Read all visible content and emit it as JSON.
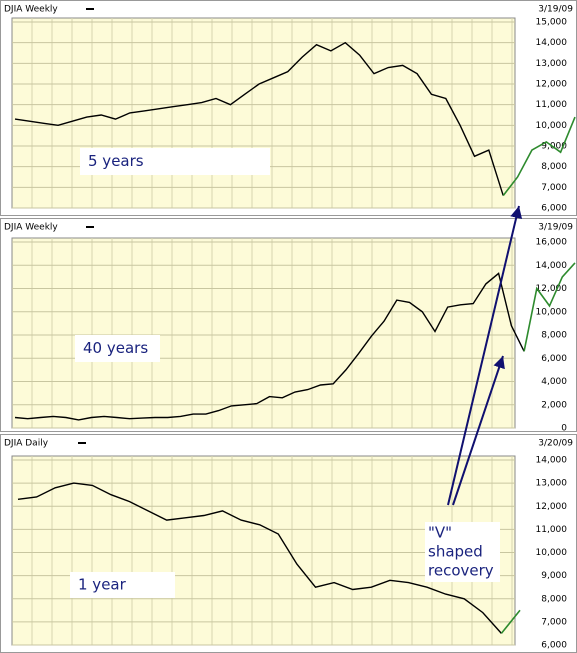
{
  "chart_data": [
    {
      "type": "line",
      "title": "DJIA Weekly",
      "date": "3/19/09",
      "annotation": "5 years",
      "series": [
        {
          "color": "#000000",
          "values": [
            10300,
            10200,
            10100,
            10000,
            10200,
            10400,
            10500,
            10300,
            10600,
            10700,
            10800,
            10900,
            11000,
            11100,
            11300,
            11000,
            11500,
            12000,
            12300,
            12600,
            13300,
            13900,
            13600,
            14000,
            13400,
            12500,
            12800,
            12900,
            12500,
            11500,
            11300,
            10000,
            8500,
            8800,
            6600,
            null,
            null,
            null,
            null,
            null
          ]
        },
        {
          "color": "#2e8b2e",
          "values": [
            null,
            null,
            null,
            null,
            null,
            null,
            null,
            null,
            null,
            null,
            null,
            null,
            null,
            null,
            null,
            null,
            null,
            null,
            null,
            null,
            null,
            null,
            null,
            null,
            null,
            null,
            null,
            null,
            null,
            null,
            null,
            null,
            null,
            null,
            6600,
            7500,
            8800,
            9200,
            8700,
            10400
          ]
        }
      ],
      "ylim": [
        6000,
        15000
      ],
      "yticks": [
        {
          "value": 6000,
          "label": "6,000"
        },
        {
          "value": 7000,
          "label": "7,000"
        },
        {
          "value": 8000,
          "label": "8,000"
        },
        {
          "value": 9000,
          "label": "9,000"
        },
        {
          "value": 10000,
          "label": "10,000"
        },
        {
          "value": 11000,
          "label": "11,000"
        },
        {
          "value": 12000,
          "label": "12,000"
        },
        {
          "value": 13000,
          "label": "13,000"
        },
        {
          "value": 14000,
          "label": "14,000"
        },
        {
          "value": 15000,
          "label": "15,000"
        }
      ],
      "grid": true
    },
    {
      "type": "line",
      "title": "DJIA Weekly",
      "date": "3/19/09",
      "annotation": "40 years",
      "series": [
        {
          "color": "#000000",
          "values": [
            900,
            800,
            900,
            1000,
            900,
            700,
            900,
            1000,
            900,
            800,
            850,
            900,
            900,
            1000,
            1200,
            1200,
            1500,
            1900,
            2000,
            2100,
            2700,
            2600,
            3100,
            3300,
            3700,
            3800,
            5000,
            6400,
            7900,
            9200,
            11000,
            10800,
            10000,
            8300,
            10400,
            10600,
            10700,
            12400,
            13300,
            8800,
            6600,
            null,
            null,
            null,
            null
          ]
        },
        {
          "color": "#2e8b2e",
          "values": [
            null,
            null,
            null,
            null,
            null,
            null,
            null,
            null,
            null,
            null,
            null,
            null,
            null,
            null,
            null,
            null,
            null,
            null,
            null,
            null,
            null,
            null,
            null,
            null,
            null,
            null,
            null,
            null,
            null,
            null,
            null,
            null,
            null,
            null,
            null,
            null,
            null,
            null,
            null,
            null,
            6600,
            12000,
            10500,
            13000,
            14200
          ]
        }
      ],
      "ylim": [
        0,
        16000
      ],
      "yticks": [
        0,
        {
          "value": 2000,
          "label": "2,000"
        },
        {
          "value": 4000,
          "label": "4,000"
        },
        {
          "value": 6000,
          "label": "6,000"
        },
        {
          "value": 8000,
          "label": "8,000"
        },
        {
          "value": 10000,
          "label": "10,000"
        },
        {
          "value": 12000,
          "label": "12,000"
        },
        {
          "value": 14000,
          "label": "14,000"
        },
        {
          "value": 16000,
          "label": "16,000"
        }
      ],
      "grid": true
    },
    {
      "type": "line",
      "title": "DJIA Daily",
      "date": "3/20/09",
      "annotation": "1 year",
      "note_lines": [
        "\"V\"",
        "shaped",
        "recovery"
      ],
      "series": [
        {
          "color": "#000000",
          "values": [
            12300,
            12400,
            12800,
            13000,
            12900,
            12500,
            12200,
            11800,
            11400,
            11500,
            11600,
            11800,
            11400,
            11200,
            10800,
            9500,
            8500,
            8700,
            8400,
            8500,
            8800,
            8700,
            8500,
            8200,
            8000,
            7400,
            6500,
            null
          ]
        },
        {
          "color": "#2e8b2e",
          "values": [
            null,
            null,
            null,
            null,
            null,
            null,
            null,
            null,
            null,
            null,
            null,
            null,
            null,
            null,
            null,
            null,
            null,
            null,
            null,
            null,
            null,
            null,
            null,
            null,
            null,
            null,
            6500,
            7500
          ]
        }
      ],
      "ylim": [
        6000,
        14000
      ],
      "yticks": [
        {
          "value": 6000,
          "label": "6,000"
        },
        {
          "value": 7000,
          "label": "7,000"
        },
        {
          "value": 8000,
          "label": "8,000"
        },
        {
          "value": 9000,
          "label": "9,000"
        },
        {
          "value": 10000,
          "label": "10,000"
        },
        {
          "value": 11000,
          "label": "11,000"
        },
        {
          "value": 12000,
          "label": "12,000"
        },
        {
          "value": 13000,
          "label": "13,000"
        },
        {
          "value": 14000,
          "label": "14,000"
        }
      ],
      "grid": true
    }
  ]
}
